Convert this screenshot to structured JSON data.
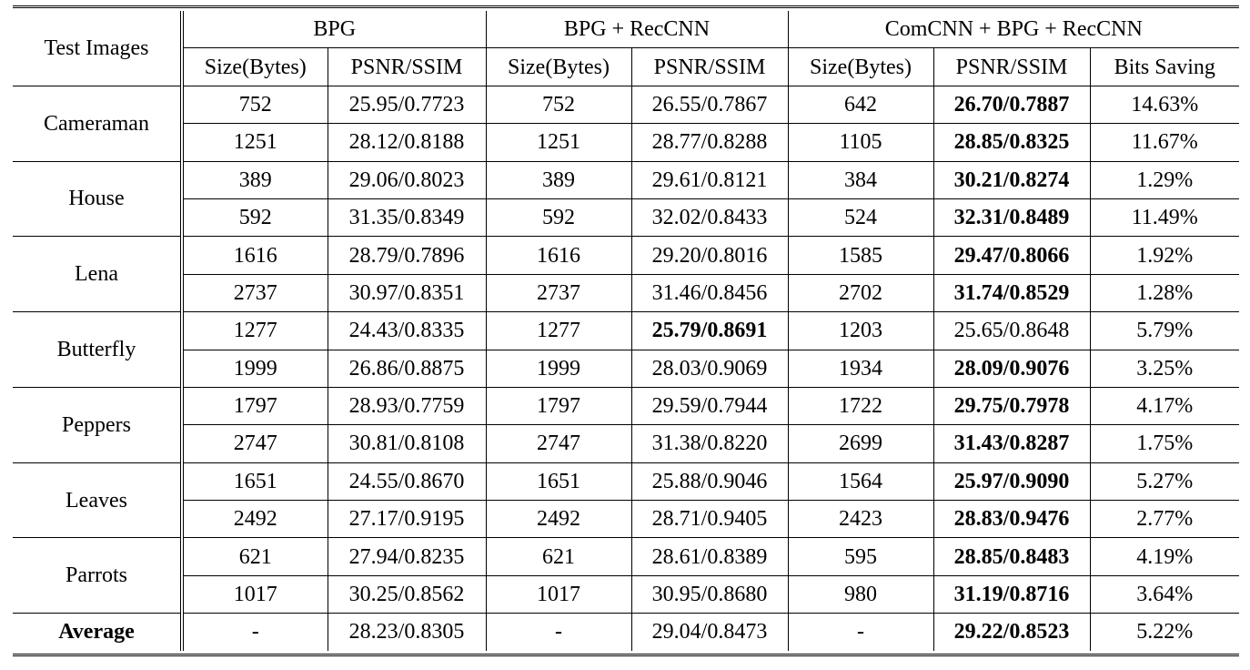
{
  "header": {
    "test_images": "Test Images",
    "groups": [
      "BPG",
      "BPG + RecCNN",
      "ComCNN + BPG + RecCNN"
    ],
    "sub": [
      "Size(Bytes)",
      "PSNR/SSIM",
      "Size(Bytes)",
      "PSNR/SSIM",
      "Size(Bytes)",
      "PSNR/SSIM",
      "Bits Saving"
    ]
  },
  "images": [
    {
      "name": "Cameraman",
      "rows": [
        {
          "c": [
            "752",
            "25.95/0.7723",
            "752",
            "26.55/0.7867",
            "642",
            "26.70/0.7887",
            "14.63%"
          ],
          "bold": [
            5
          ]
        },
        {
          "c": [
            "1251",
            "28.12/0.8188",
            "1251",
            "28.77/0.8288",
            "1105",
            "28.85/0.8325",
            "11.67%"
          ],
          "bold": [
            5
          ]
        }
      ]
    },
    {
      "name": "House",
      "rows": [
        {
          "c": [
            "389",
            "29.06/0.8023",
            "389",
            "29.61/0.8121",
            "384",
            "30.21/0.8274",
            "1.29%"
          ],
          "bold": [
            5
          ]
        },
        {
          "c": [
            "592",
            "31.35/0.8349",
            "592",
            "32.02/0.8433",
            "524",
            "32.31/0.8489",
            "11.49%"
          ],
          "bold": [
            5
          ]
        }
      ]
    },
    {
      "name": "Lena",
      "rows": [
        {
          "c": [
            "1616",
            "28.79/0.7896",
            "1616",
            "29.20/0.8016",
            "1585",
            "29.47/0.8066",
            "1.92%"
          ],
          "bold": [
            5
          ]
        },
        {
          "c": [
            "2737",
            "30.97/0.8351",
            "2737",
            "31.46/0.8456",
            "2702",
            "31.74/0.8529",
            "1.28%"
          ],
          "bold": [
            5
          ]
        }
      ]
    },
    {
      "name": "Butterfly",
      "rows": [
        {
          "c": [
            "1277",
            "24.43/0.8335",
            "1277",
            "25.79/0.8691",
            "1203",
            "25.65/0.8648",
            "5.79%"
          ],
          "bold": [
            3
          ]
        },
        {
          "c": [
            "1999",
            "26.86/0.8875",
            "1999",
            "28.03/0.9069",
            "1934",
            "28.09/0.9076",
            "3.25%"
          ],
          "bold": [
            5
          ]
        }
      ]
    },
    {
      "name": "Peppers",
      "rows": [
        {
          "c": [
            "1797",
            "28.93/0.7759",
            "1797",
            "29.59/0.7944",
            "1722",
            "29.75/0.7978",
            "4.17%"
          ],
          "bold": [
            5
          ]
        },
        {
          "c": [
            "2747",
            "30.81/0.8108",
            "2747",
            "31.38/0.8220",
            "2699",
            "31.43/0.8287",
            "1.75%"
          ],
          "bold": [
            5
          ]
        }
      ]
    },
    {
      "name": "Leaves",
      "rows": [
        {
          "c": [
            "1651",
            "24.55/0.8670",
            "1651",
            "25.88/0.9046",
            "1564",
            "25.97/0.9090",
            "5.27%"
          ],
          "bold": [
            5
          ]
        },
        {
          "c": [
            "2492",
            "27.17/0.9195",
            "2492",
            "28.71/0.9405",
            "2423",
            "28.83/0.9476",
            "2.77%"
          ],
          "bold": [
            5
          ]
        }
      ]
    },
    {
      "name": "Parrots",
      "rows": [
        {
          "c": [
            "621",
            "27.94/0.8235",
            "621",
            "28.61/0.8389",
            "595",
            "28.85/0.8483",
            "4.19%"
          ],
          "bold": [
            5
          ]
        },
        {
          "c": [
            "1017",
            "30.25/0.8562",
            "1017",
            "30.95/0.8680",
            "980",
            "31.19/0.8716",
            "3.64%"
          ],
          "bold": [
            5
          ]
        }
      ]
    }
  ],
  "average": {
    "name": "Average",
    "c": [
      "-",
      "28.23/0.8305",
      "-",
      "29.04/0.8473",
      "-",
      "29.22/0.8523",
      "5.22%"
    ],
    "bold": [
      5
    ]
  }
}
